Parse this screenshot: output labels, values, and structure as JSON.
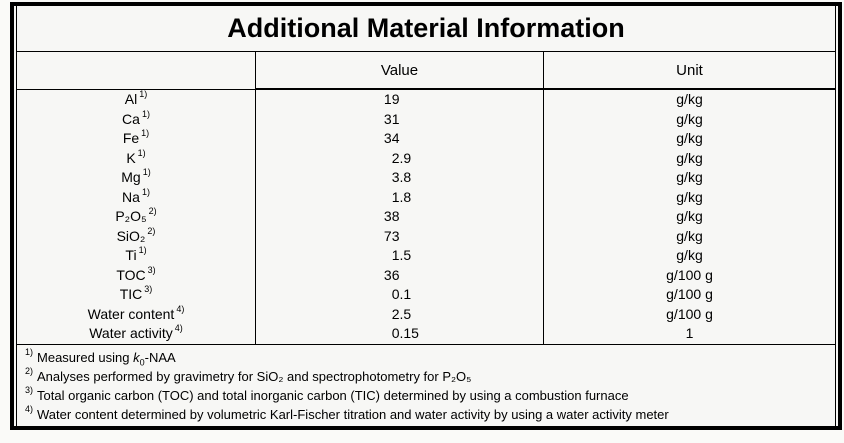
{
  "title": "Additional Material Information",
  "table": {
    "headers": {
      "param": "",
      "value": "Value",
      "unit": "Unit"
    },
    "rows": [
      {
        "param": "Al",
        "sup": "1)",
        "value_int": "19",
        "value_frac": "",
        "unit": "g/kg"
      },
      {
        "param": "Ca",
        "sup": "1)",
        "value_int": "31",
        "value_frac": "",
        "unit": "g/kg"
      },
      {
        "param": "Fe",
        "sup": "1)",
        "value_int": "34",
        "value_frac": "",
        "unit": "g/kg"
      },
      {
        "param": "K",
        "sup": "1)",
        "value_int": "2",
        "value_frac": ".9",
        "unit": "g/kg"
      },
      {
        "param": "Mg",
        "sup": "1)",
        "value_int": "3",
        "value_frac": ".8",
        "unit": "g/kg"
      },
      {
        "param": "Na",
        "sup": "1)",
        "value_int": "1",
        "value_frac": ".8",
        "unit": "g/kg"
      },
      {
        "param": "P₂O₅",
        "sup": "2)",
        "value_int": "38",
        "value_frac": "",
        "unit": "g/kg"
      },
      {
        "param": "SiO₂",
        "sup": "2)",
        "value_int": "73",
        "value_frac": "",
        "unit": "g/kg"
      },
      {
        "param": "Ti",
        "sup": "1)",
        "value_int": "1",
        "value_frac": ".5",
        "unit": "g/kg"
      },
      {
        "param": "TOC",
        "sup": "3)",
        "value_int": "36",
        "value_frac": "",
        "unit": "g/100 g"
      },
      {
        "param": "TIC",
        "sup": "3)",
        "value_int": "0",
        "value_frac": ".1",
        "unit": "g/100 g"
      },
      {
        "param": "Water content",
        "sup": "4)",
        "value_int": "2",
        "value_frac": ".5",
        "unit": "g/100 g"
      },
      {
        "param": "Water activity",
        "sup": "4)",
        "value_int": "0",
        "value_frac": ".15",
        "unit": "1"
      }
    ]
  },
  "footnotes": [
    {
      "sup": "1)",
      "pre": "Measured using ",
      "italic": "k",
      "subscript": "0",
      "post": "-NAA"
    },
    {
      "sup": "2)",
      "text": "Analyses performed by gravimetry for SiO₂ and spectrophotometry for P₂O₅"
    },
    {
      "sup": "3)",
      "text": "Total organic carbon (TOC) and total inorganic carbon (TIC) determined by using a combustion furnace"
    },
    {
      "sup": "4)",
      "text": "Water content determined by volumetric Karl-Fischer titration and water activity by using a water activity meter"
    }
  ],
  "colors": {
    "border": "#000000",
    "background": "#f7f7f5",
    "text": "#000000"
  }
}
